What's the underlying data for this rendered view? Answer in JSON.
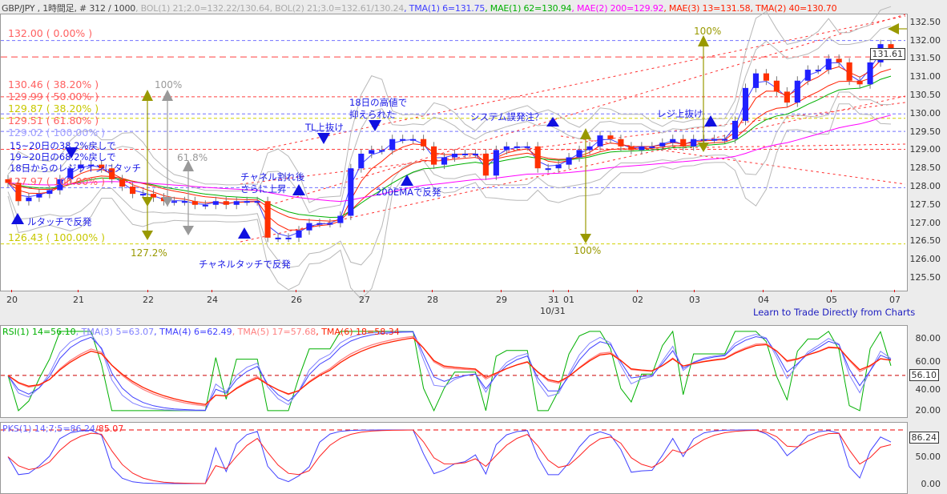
{
  "header": {
    "symbol": "GBP/JPY , 1時間足, # 312 / 1000",
    "indicators": [
      {
        "text": ", BOL(1) 21;2.0=132.22/130.64",
        "color": "#aaaaaa"
      },
      {
        "text": ", BOL(2) 21;3.0=132.61/130.24",
        "color": "#aaaaaa"
      },
      {
        "text": ", TMA(1) 6=131.75",
        "color": "#4040ff"
      },
      {
        "text": ", MAE(1) 62=130.94",
        "color": "#00b000"
      },
      {
        "text": ", MAE(2) 200=129.92",
        "color": "#ff00ff"
      },
      {
        "text": ", MAE(3) 13=131.58",
        "color": "#ff2000"
      },
      {
        "text": ", TMA(2) 40=130.70",
        "color": "#ff2000"
      }
    ]
  },
  "fib_labels": [
    {
      "text": "132.00 ( 0.00% )",
      "price": 132.0,
      "color": "#ff6060"
    },
    {
      "text": "130.46 ( 38.20% )",
      "price": 130.46,
      "color": "#ff6060"
    },
    {
      "text": "129.99 ( 50.00% )",
      "price": 129.99,
      "color": "#ff6060"
    },
    {
      "text": "129.87 ( 38.20% )",
      "price": 129.87,
      "color": "#c8c800"
    },
    {
      "text": "129.51 ( 61.80% )",
      "price": 129.51,
      "color": "#ff6060"
    },
    {
      "text": "129.02 ( 100.00% )",
      "price": 129.02,
      "color": "#a0a0ff"
    },
    {
      "text": "127.97 ( 100.00% )",
      "price": 127.97,
      "color": "#ff6060"
    },
    {
      "text": "126.43 ( 100.00% )",
      "price": 126.43,
      "color": "#c8c800"
    }
  ],
  "annotations": {
    "a1": "15~20日の38.2%戻しで",
    "a2": "19~20日の68.2%戻しで",
    "a3": "18日からのレジラインにタッチ",
    "a4": "ルタッチで反発",
    "a5": "チャネルタッチで反発",
    "a6": "チャネル割れ後",
    "a7": "さらに上昇",
    "a8": "TL上抜け",
    "a9": "18日の高値で",
    "a10": "抑えられた",
    "a11": "200EMAで反発",
    "a12": "システム誤発注？",
    "a13": "レジ上抜け",
    "p100a": "100%",
    "p618": "61.8%",
    "p1272": "127.2%",
    "p100b": "100%",
    "p100c": "100%"
  },
  "footer_link": "Learn to Trade Directly from Charts",
  "rsi": {
    "label_parts": [
      {
        "text": "RSI(1) 14=56.10",
        "color": "#00b000"
      },
      {
        "text": ", TMA(3) 5=63.07",
        "color": "#8080ff"
      },
      {
        "text": ", TMA(4) 6=62.49",
        "color": "#4040ff"
      },
      {
        "text": ", TMA(5) 17=57.68",
        "color": "#ff8080"
      },
      {
        "text": ", TMA(6) 18=58.34",
        "color": "#ff2000"
      }
    ],
    "current": "56.10",
    "ticks": [
      "80.00",
      "60.00",
      "40.00",
      "20.00"
    ]
  },
  "pks": {
    "label_main": "PKS(1) 14;7;5=86.24",
    "label_sig": "/85.07",
    "current": "86.24",
    "ticks": [
      "50.00",
      "0.00"
    ]
  },
  "chart_data": {
    "type": "candlestick",
    "symbol": "GBP/JPY",
    "ylim": [
      125.5,
      132.5
    ],
    "yticks": [
      "132.50",
      "132.00",
      "131.50",
      "131.00",
      "130.50",
      "130.00",
      "129.50",
      "129.00",
      "128.50",
      "128.00",
      "127.50",
      "127.00",
      "126.50",
      "126.00",
      "125.50"
    ],
    "current_price": "131.61",
    "xticks": [
      "20",
      "21",
      "22",
      "24",
      "26",
      "27",
      "28",
      "29",
      "31",
      "01",
      "02",
      "03",
      "04",
      "05",
      "07"
    ],
    "xsublabel": "10/31",
    "closes": [
      128.1,
      127.6,
      127.7,
      127.8,
      127.9,
      128.2,
      128.5,
      128.6,
      128.6,
      128.5,
      128.2,
      128.0,
      127.8,
      127.8,
      127.7,
      127.6,
      127.6,
      127.6,
      127.5,
      127.5,
      127.6,
      127.5,
      127.6,
      127.6,
      127.6,
      126.6,
      126.6,
      126.6,
      126.8,
      127.0,
      127.0,
      127.0,
      127.2,
      128.5,
      128.9,
      129.0,
      129.0,
      129.3,
      129.3,
      129.3,
      129.1,
      128.6,
      128.8,
      128.9,
      128.9,
      128.9,
      128.3,
      129.0,
      129.1,
      129.1,
      129.1,
      128.5,
      128.5,
      128.6,
      128.8,
      129.0,
      129.1,
      129.4,
      129.3,
      129.1,
      129.0,
      129.1,
      129.1,
      129.2,
      129.3,
      129.1,
      129.3,
      129.3,
      129.3,
      129.3,
      129.8,
      130.7,
      131.1,
      130.9,
      130.6,
      130.3,
      130.9,
      131.2,
      131.2,
      131.5,
      131.4,
      130.9,
      130.8,
      131.4,
      131.9,
      131.6
    ]
  }
}
